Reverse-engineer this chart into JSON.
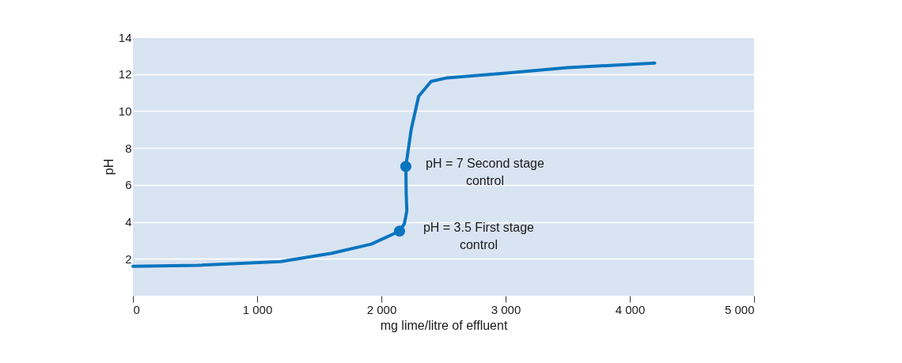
{
  "chart_data": {
    "type": "line",
    "xlabel": "mg lime/litre of effluent",
    "ylabel": "pH",
    "xlim": [
      0,
      5000
    ],
    "ylim": [
      0,
      14
    ],
    "xticks": [
      0,
      {
        "value": 1000,
        "label": "1 000"
      },
      {
        "value": 2000,
        "label": "2 000"
      },
      {
        "value": 3000,
        "label": "3 000"
      },
      {
        "value": 4000,
        "label": "4 000"
      },
      {
        "value": 5000,
        "label": "5 000"
      }
    ],
    "yticks": [
      2,
      4,
      6,
      8,
      10,
      12,
      14
    ],
    "grid": "y",
    "line_style": "solid",
    "series": [
      {
        "color": "#0a75bf",
        "marker": "none",
        "x": [
          0,
          520,
          1190,
          1600,
          1920,
          2146,
          2185,
          2205,
          2200,
          2197,
          2240,
          2300,
          2400,
          2530,
          3000,
          3500,
          4200
        ],
        "values": [
          1.6,
          1.65,
          1.85,
          2.3,
          2.8,
          3.5,
          3.9,
          4.6,
          5.5,
          7,
          9,
          10.8,
          11.6,
          11.8,
          12.05,
          12.35,
          12.6
        ]
      },
      {
        "type": "scatter",
        "color": "#0a75bf",
        "marker": "circle",
        "x": [
          2146,
          2197
        ],
        "values": [
          3.5,
          7
        ]
      }
    ],
    "annotations": [
      {
        "text": "pH = 3.5 First stage\ncontrol",
        "x": 2146,
        "y": 3.5
      },
      {
        "text": "pH = 7 Second stage\ncontrol",
        "x": 2197,
        "y": 7
      }
    ]
  }
}
